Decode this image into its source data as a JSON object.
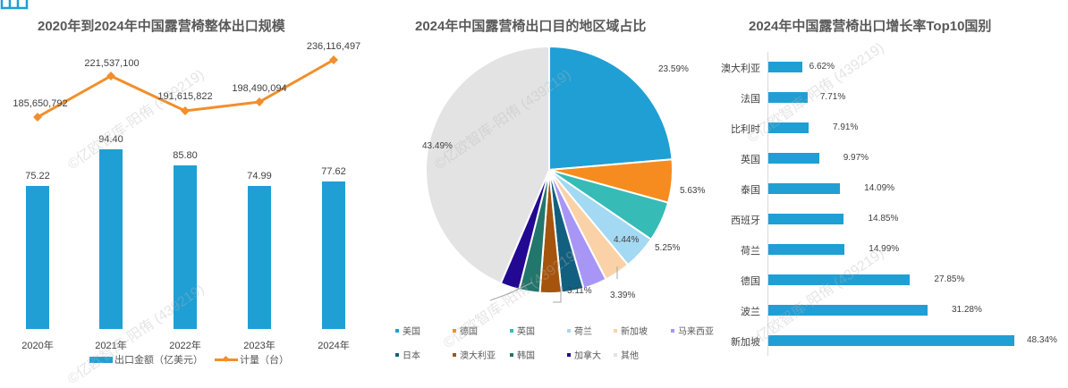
{
  "watermark": "©亿欧智库-阳侑 (439219)",
  "chart_data": [
    {
      "type": "bar+line",
      "title": "2020年到2024年中国露营椅整体出口规模",
      "categories": [
        "2020年",
        "2021年",
        "2022年",
        "2023年",
        "2024年"
      ],
      "series": [
        {
          "name": "出口金额（亿美元）",
          "type": "bar",
          "color": "#1f9fd4",
          "values": [
            75.22,
            94.4,
            85.8,
            74.99,
            77.62
          ],
          "labels": [
            "75.22",
            "94.40",
            "85.80",
            "74.99",
            "77.62"
          ]
        },
        {
          "name": "计量（台）",
          "type": "line",
          "color": "#f28e2b",
          "values": [
            185650792,
            221537100,
            191615822,
            198490094,
            236116497
          ],
          "labels": [
            "185,650,792",
            "221,537,100",
            "191,615,822",
            "198,490,094",
            "236,116,497"
          ]
        }
      ],
      "legend_position": "bottom",
      "grid": false
    },
    {
      "type": "pie",
      "title": "2024年中国露营椅出口目的地区域占比",
      "slices": [
        {
          "name": "美国",
          "value": 23.59,
          "label": "23.59%",
          "color": "#1f9fd4"
        },
        {
          "name": "德国",
          "value": 5.63,
          "label": "5.63%",
          "color": "#f68b1f"
        },
        {
          "name": "英国",
          "value": 5.25,
          "label": "5.25%",
          "color": "#36bbb6"
        },
        {
          "name": "荷兰",
          "value": 4.44,
          "label": "4.44%",
          "color": "#a3d9f2"
        },
        {
          "name": "新加坡",
          "value": 3.39,
          "label": "3.39%",
          "color": "#fbd2a8"
        },
        {
          "name": "马来西亚",
          "value": 3.11,
          "label": "3.11%",
          "color": "#a896f7"
        },
        {
          "name": "日本",
          "value": 2.9,
          "label": "",
          "color": "#12607f"
        },
        {
          "name": "澳大利亚",
          "value": 2.8,
          "label": "",
          "color": "#a5540d"
        },
        {
          "name": "韩国",
          "value": 2.7,
          "label": "",
          "color": "#22766c"
        },
        {
          "name": "加拿大",
          "value": 2.5,
          "label": "",
          "color": "#230892"
        },
        {
          "name": "其他",
          "value": 43.49,
          "label": "43.49%",
          "color": "#e3e3e3"
        }
      ],
      "legend_position": "bottom"
    },
    {
      "type": "bar",
      "orientation": "horizontal",
      "title": "2024年中国露营椅出口增长率Top10国别",
      "categories": [
        "澳大利亚",
        "法国",
        "比利时",
        "英国",
        "泰国",
        "西班牙",
        "荷兰",
        "德国",
        "波兰",
        "新加坡"
      ],
      "values": [
        6.62,
        7.71,
        7.91,
        9.97,
        14.09,
        14.85,
        14.99,
        27.85,
        31.28,
        48.34
      ],
      "labels": [
        "6.62%",
        "7.71%",
        "7.91%",
        "9.97%",
        "14.09%",
        "14.85%",
        "14.99%",
        "27.85%",
        "31.28%",
        "48.34%"
      ],
      "color": "#1f9fd4",
      "grid": false
    }
  ]
}
